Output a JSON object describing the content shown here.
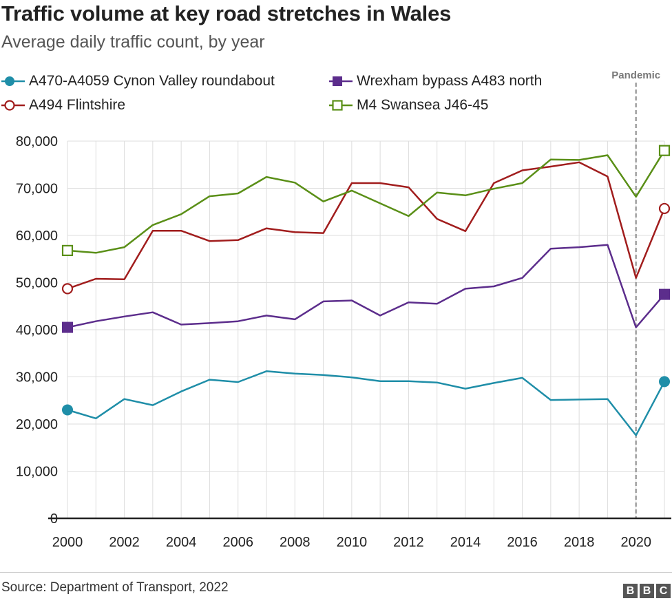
{
  "header": {
    "title": "Traffic volume at key road stretches in Wales",
    "subtitle": "Average daily traffic count, by year"
  },
  "footer": {
    "source": "Source: Department of Transport, 2022",
    "logo_letters": [
      "B",
      "B",
      "C"
    ]
  },
  "chart_data": {
    "type": "line",
    "title": "Traffic volume at key road stretches in Wales",
    "subtitle": "Average daily traffic count, by year",
    "xlabel": "",
    "ylabel": "",
    "x": [
      2000,
      2001,
      2002,
      2003,
      2004,
      2005,
      2006,
      2007,
      2008,
      2009,
      2010,
      2011,
      2012,
      2013,
      2014,
      2015,
      2016,
      2017,
      2018,
      2019,
      2020,
      2021
    ],
    "xlim": [
      2000,
      2021
    ],
    "ylim": [
      0,
      80000
    ],
    "x_ticks": [
      "2000",
      "2002",
      "2004",
      "2006",
      "2008",
      "2010",
      "2012",
      "2014",
      "2016",
      "2018",
      "2020"
    ],
    "x_tick_values": [
      2000,
      2002,
      2004,
      2006,
      2008,
      2010,
      2012,
      2014,
      2016,
      2018,
      2020
    ],
    "y_ticks": [
      "0",
      "10,000",
      "20,000",
      "30,000",
      "40,000",
      "50,000",
      "60,000",
      "70,000",
      "80,000"
    ],
    "y_tick_values": [
      0,
      10000,
      20000,
      30000,
      40000,
      50000,
      60000,
      70000,
      80000
    ],
    "grid": true,
    "legend_position": "top-left",
    "annotation": {
      "label": "Pandemic",
      "x": 2020,
      "style": "dashed vertical line"
    },
    "series": [
      {
        "name": "A470-A4059 Cynon Valley roundabout",
        "color": "#1f8ea8",
        "marker": "filled-circle",
        "values": [
          23000,
          21200,
          25300,
          24000,
          26900,
          29400,
          28900,
          31200,
          30700,
          30400,
          29900,
          29100,
          29100,
          28800,
          27500,
          28700,
          29800,
          25100,
          25200,
          25300,
          17600,
          29000
        ]
      },
      {
        "name": "Wrexham bypass A483 north",
        "color": "#5c2d8c",
        "marker": "filled-square",
        "values": [
          40500,
          41800,
          42800,
          43700,
          41100,
          41400,
          41800,
          43000,
          42200,
          46000,
          46200,
          43000,
          45800,
          45500,
          48700,
          49200,
          51000,
          57200,
          57500,
          58000,
          40500,
          47500
        ]
      },
      {
        "name": "A494 Flintshire",
        "color": "#a11d1d",
        "marker": "open-circle",
        "values": [
          48700,
          50800,
          50700,
          61000,
          61000,
          58800,
          59000,
          61500,
          60700,
          60500,
          71100,
          71100,
          70200,
          63500,
          60900,
          71100,
          73800,
          74600,
          75500,
          72500,
          51000,
          65700
        ]
      },
      {
        "name": "M4 Swansea J46-45",
        "color": "#5a8f17",
        "marker": "open-square",
        "values": [
          56800,
          56300,
          57500,
          62200,
          64500,
          68300,
          68900,
          72400,
          71200,
          67200,
          69500,
          66800,
          64100,
          69100,
          68500,
          69900,
          71100,
          76100,
          76000,
          77000,
          68200,
          78000
        ]
      }
    ]
  }
}
